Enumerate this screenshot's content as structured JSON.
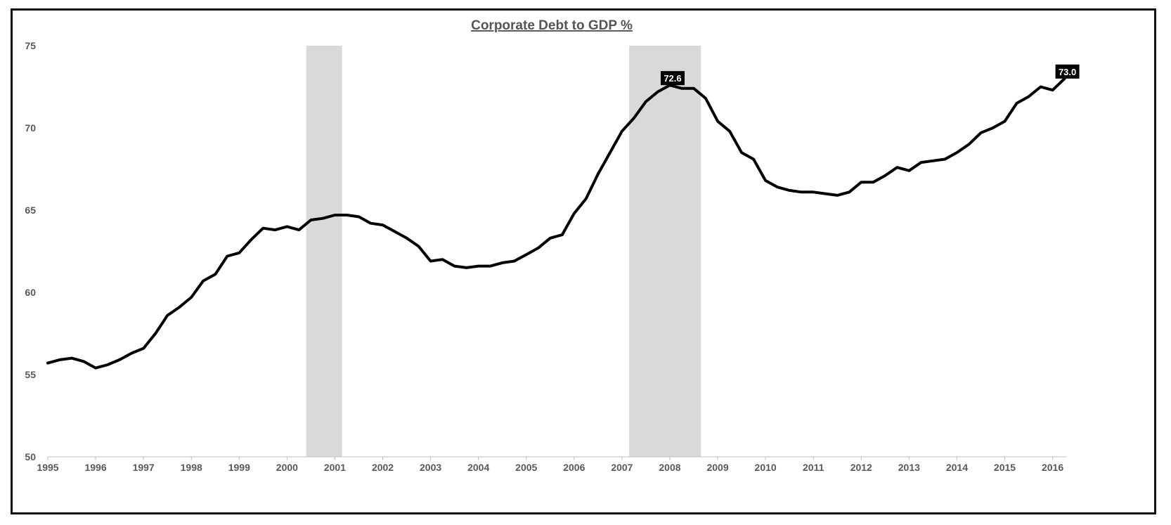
{
  "chart_data": {
    "type": "line",
    "title": "Corporate Debt to GDP %",
    "xlabel": "",
    "ylabel": "",
    "ylim": [
      50,
      75
    ],
    "xlim": [
      1995,
      2016.3
    ],
    "yticks": [
      "50",
      "55",
      "60",
      "65",
      "70",
      "75"
    ],
    "xticks": [
      "1995",
      "1996",
      "1997",
      "1998",
      "1999",
      "2000",
      "2001",
      "2002",
      "2003",
      "2004",
      "2005",
      "2006",
      "2007",
      "2008",
      "2009",
      "2010",
      "2011",
      "2012",
      "2013",
      "2014",
      "2015",
      "2016"
    ],
    "grid": false,
    "legend": "none",
    "line_color": "#000000",
    "shade_color": "#d9d9d9",
    "shaded_periods": [
      [
        2000.4,
        2001.15
      ],
      [
        2007.15,
        2008.65
      ]
    ],
    "series": [
      {
        "x": [
          1995.0,
          1995.25,
          1995.5,
          1995.75,
          1996.0,
          1996.25,
          1996.5,
          1996.75,
          1997.0,
          1997.25,
          1997.5,
          1997.75,
          1998.0,
          1998.25,
          1998.5,
          1998.75,
          1999.0,
          1999.25,
          1999.5,
          1999.75,
          2000.0,
          2000.25,
          2000.5,
          2000.75,
          2001.0,
          2001.25,
          2001.5,
          2001.75,
          2002.0,
          2002.25,
          2002.5,
          2002.75,
          2003.0,
          2003.25,
          2003.5,
          2003.75,
          2004.0,
          2004.25,
          2004.5,
          2004.75,
          2005.0,
          2005.25,
          2005.5,
          2005.75,
          2006.0,
          2006.25,
          2006.5,
          2006.75,
          2007.0,
          2007.25,
          2007.5,
          2007.75,
          2008.0,
          2008.25,
          2008.5,
          2008.75,
          2009.0,
          2009.25,
          2009.5,
          2009.75,
          2010.0,
          2010.25,
          2010.5,
          2010.75,
          2011.0,
          2011.25,
          2011.5,
          2011.75,
          2012.0,
          2012.25,
          2012.5,
          2012.75,
          2013.0,
          2013.25,
          2013.5,
          2013.75,
          2014.0,
          2014.25,
          2014.5,
          2014.75,
          2015.0,
          2015.25,
          2015.5,
          2015.75,
          2016.0,
          2016.25
        ],
        "values": [
          55.7,
          55.9,
          56.0,
          55.8,
          55.4,
          55.6,
          55.9,
          56.3,
          56.6,
          57.5,
          58.6,
          59.1,
          59.7,
          60.7,
          61.1,
          62.2,
          62.4,
          63.2,
          63.9,
          63.8,
          64.0,
          63.8,
          64.4,
          64.5,
          64.7,
          64.7,
          64.6,
          64.2,
          64.1,
          63.7,
          63.3,
          62.8,
          61.9,
          62.0,
          61.6,
          61.5,
          61.6,
          61.6,
          61.8,
          61.9,
          62.3,
          62.7,
          63.3,
          63.5,
          64.8,
          65.7,
          67.2,
          68.5,
          69.8,
          70.6,
          71.6,
          72.2,
          72.6,
          72.4,
          72.4,
          71.8,
          70.4,
          69.8,
          68.5,
          68.1,
          66.8,
          66.4,
          66.2,
          66.1,
          66.1,
          66.0,
          65.9,
          66.1,
          66.7,
          66.7,
          67.1,
          67.6,
          67.4,
          67.9,
          68.0,
          68.1,
          68.5,
          69.0,
          69.7,
          70.0,
          70.4,
          71.5,
          71.9,
          72.5,
          72.3,
          73.0
        ]
      }
    ],
    "callouts": [
      {
        "x": 2008.0,
        "y": 72.6,
        "label": "72.6"
      },
      {
        "x": 2016.25,
        "y": 73.0,
        "label": "73.0"
      }
    ]
  }
}
